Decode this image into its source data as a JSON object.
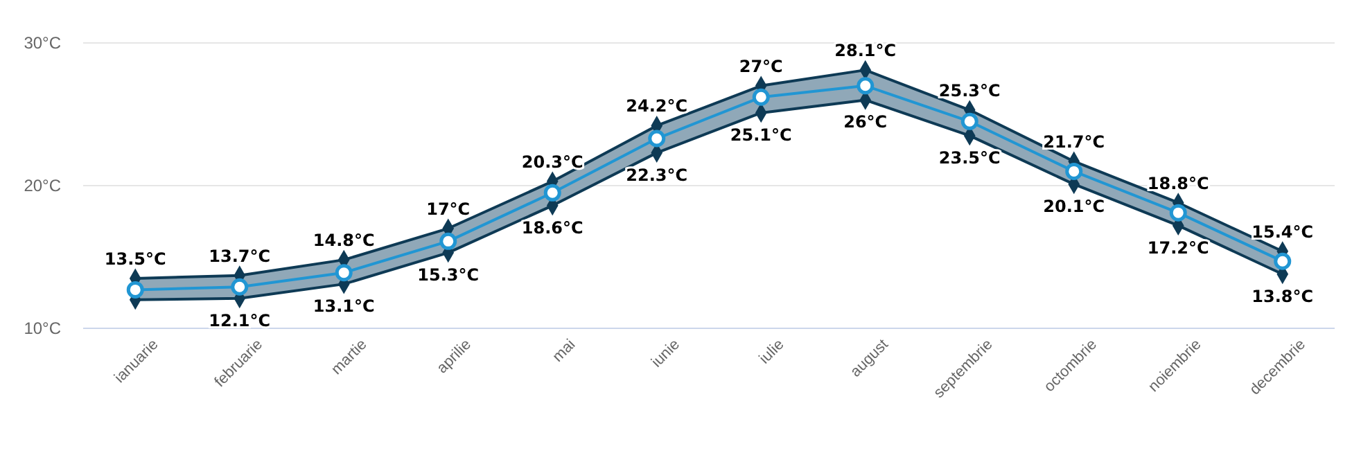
{
  "chart_data": {
    "type": "line",
    "categories": [
      "ianuarie",
      "februarie",
      "martie",
      "aprilie",
      "mai",
      "iunie",
      "iulie",
      "august",
      "septembrie",
      "octombrie",
      "noiembrie",
      "decembrie"
    ],
    "ylim": [
      10,
      30
    ],
    "yticks": [
      {
        "value": 10,
        "label": "10°C"
      },
      {
        "value": 20,
        "label": "20°C"
      },
      {
        "value": 30,
        "label": "30°C"
      }
    ],
    "grid": "y",
    "line_style": "solid",
    "series": [
      {
        "color": "#0e3a55",
        "marker": "diamond",
        "values": [
          13.5,
          13.7,
          14.8,
          17,
          20.3,
          24.2,
          27,
          28.1,
          25.3,
          21.7,
          18.8,
          15.4
        ],
        "value_labels": [
          "13.5°C",
          "13.7°C",
          "14.8°C",
          "17°C",
          "20.3°C",
          "24.2°C",
          "27°C",
          "28.1°C",
          "25.3°C",
          "21.7°C",
          "18.8°C",
          "15.4°C"
        ]
      },
      {
        "color": "#0e3a55",
        "marker": "diamond",
        "values": [
          12.0,
          12.1,
          13.1,
          15.3,
          18.6,
          22.3,
          25.1,
          26,
          23.5,
          20.1,
          17.2,
          13.8
        ],
        "value_labels": [
          null,
          "12.1°C",
          "13.1°C",
          "15.3°C",
          "18.6°C",
          "22.3°C",
          "25.1°C",
          "26°C",
          "23.5°C",
          "20.1°C",
          "17.2°C",
          "13.8°C"
        ]
      },
      {
        "color": "#2196d3",
        "marker": "circle",
        "values": [
          12.7,
          12.9,
          13.9,
          16.1,
          19.5,
          23.3,
          26.2,
          27.0,
          24.5,
          21.0,
          18.1,
          14.7
        ],
        "lower": [
          12.0,
          12.1,
          13.1,
          15.3,
          18.6,
          22.3,
          25.1,
          26,
          23.5,
          20.1,
          17.2,
          13.8
        ],
        "upper": [
          13.5,
          13.7,
          14.8,
          17,
          20.3,
          24.2,
          27,
          28.1,
          25.3,
          21.7,
          18.8,
          15.4
        ]
      }
    ]
  }
}
